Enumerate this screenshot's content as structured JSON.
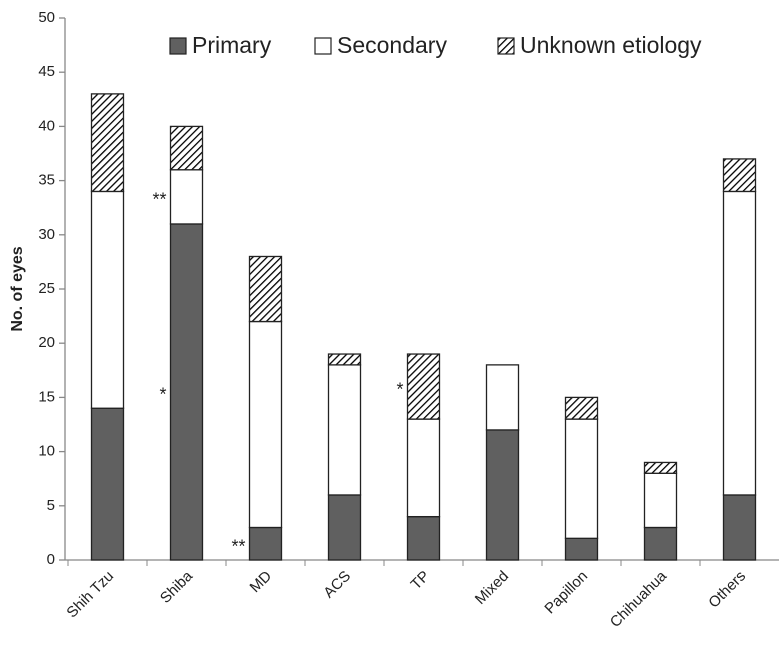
{
  "chart_data": {
    "type": "stacked_bar",
    "y_label": "No. of eyes",
    "categories": [
      "Shih Tzu",
      "Shiba",
      "MD",
      "ACS",
      "TP",
      "Mixed",
      "Papillon",
      "Chihuahua",
      "Others"
    ],
    "series": [
      {
        "name": "Primary",
        "color": "#606060",
        "values": [
          14,
          31,
          3,
          6,
          4,
          12,
          2,
          3,
          6
        ]
      },
      {
        "name": "Secondary",
        "color": "#ffffff",
        "values": [
          20,
          5,
          19,
          12,
          9,
          6,
          11,
          5,
          28
        ]
      },
      {
        "name": "Unknown etiology",
        "color": "#000000",
        "hatch": true,
        "values": [
          9,
          4,
          6,
          1,
          6,
          0,
          2,
          1,
          3
        ]
      }
    ],
    "annotations": [
      {
        "text": "**",
        "category": "Shiba",
        "series": "Secondary"
      },
      {
        "text": "*",
        "category": "Shiba",
        "series": "Primary"
      },
      {
        "text": "**",
        "category": "MD",
        "series": "Primary"
      },
      {
        "text": "*",
        "category": "TP",
        "series": "Unknown etiology"
      }
    ],
    "ylim": [
      0,
      50
    ],
    "yticks": [
      0,
      5,
      10,
      15,
      20,
      25,
      30,
      35,
      40,
      45,
      50
    ],
    "grid": false,
    "legend": "top"
  }
}
